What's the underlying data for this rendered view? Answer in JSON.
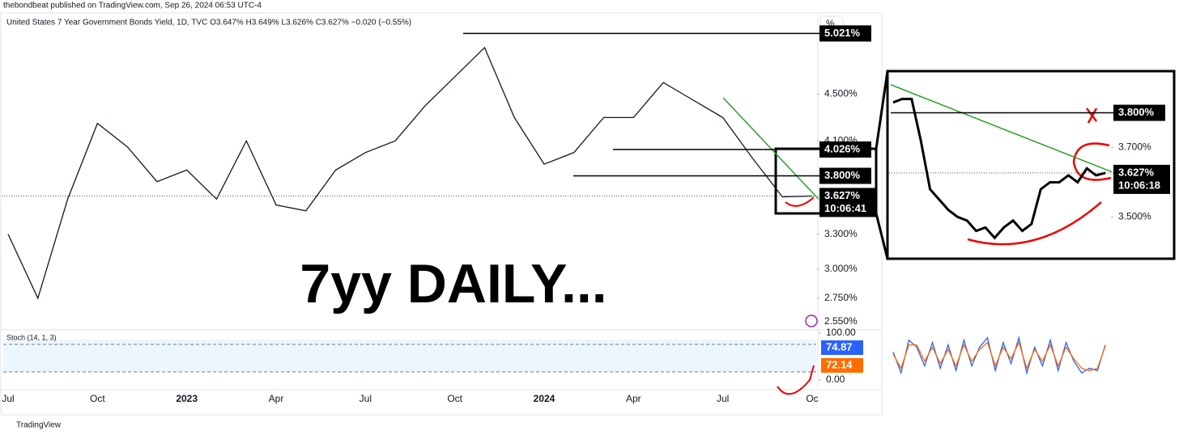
{
  "header": {
    "publisher": "thebondbeat published on TradingView.com, Sep 26, 2024 06:53 UTC-4",
    "footer": "TradingView",
    "unit": "%"
  },
  "chart_data": [
    {
      "type": "line",
      "title": "United States 7 Year Government Bonds Yield, 1D, TVC O3.647% H3.649% L3.626% C3.627% −0.020 (−0.55%)",
      "annotation": "7yy DAILY...",
      "categories": [
        "Jul",
        null,
        null,
        "Oct",
        null,
        null,
        "2023",
        null,
        null,
        "Apr",
        null,
        null,
        "Jul",
        null,
        null,
        "Oct",
        null,
        null,
        "2024",
        null,
        null,
        "Apr",
        null,
        null,
        "Jul",
        null,
        null,
        "Oc"
      ],
      "values": [
        3.3,
        2.75,
        3.6,
        4.25,
        4.05,
        3.75,
        3.85,
        3.6,
        4.1,
        3.55,
        3.5,
        3.85,
        4.0,
        4.1,
        4.4,
        4.65,
        4.9,
        4.3,
        3.9,
        4.0,
        4.3,
        4.3,
        4.6,
        4.45,
        4.3,
        3.95,
        3.62,
        3.627
      ],
      "color": "#131722",
      "ylim": [
        2.5,
        5.1
      ],
      "yticks": [
        {
          "value": 2.55,
          "label": "2.550%"
        },
        {
          "value": 2.75,
          "label": "2.750%"
        },
        {
          "value": 3.0,
          "label": "3.000%"
        },
        {
          "value": 3.3,
          "label": "3.300%"
        },
        {
          "value": 4.1,
          "label": "4.100%"
        },
        {
          "value": 4.5,
          "label": "4.500%"
        }
      ],
      "levels": [
        {
          "value": 5.021,
          "label": "5.021%"
        },
        {
          "value": 4.026,
          "label": "4.026%"
        },
        {
          "value": 3.8,
          "label": "3.800%"
        }
      ],
      "last": {
        "value": 3.627,
        "label": "3.627%",
        "countdown": "10:06:41"
      },
      "trendline": {
        "color": "#2e9e2e",
        "values": [
          4.47,
          3.6
        ]
      }
    },
    {
      "type": "line",
      "title": "Stoch (14, 1, 3)",
      "ylim": [
        0,
        100
      ],
      "yticks": [
        {
          "value": 0,
          "label": "0.00"
        },
        {
          "value": 100,
          "label": "100.00"
        }
      ],
      "series": [
        {
          "color": "#2962ff",
          "values": [
            60,
            15,
            85,
            70,
            30,
            80,
            25,
            75,
            20,
            85,
            30,
            70,
            90,
            20,
            80,
            35,
            90,
            15,
            70,
            30,
            85,
            20,
            80,
            40,
            15,
            25,
            20,
            74.87
          ]
        },
        {
          "color": "#ff6d00",
          "values": [
            55,
            25,
            75,
            75,
            40,
            70,
            35,
            65,
            30,
            75,
            40,
            65,
            80,
            30,
            70,
            45,
            80,
            25,
            65,
            40,
            75,
            30,
            70,
            45,
            25,
            20,
            25,
            72.14
          ]
        }
      ]
    },
    {
      "type": "line",
      "values": [
        3.83,
        3.84,
        3.84,
        3.72,
        3.58,
        3.55,
        3.52,
        3.5,
        3.49,
        3.46,
        3.47,
        3.44,
        3.47,
        3.49,
        3.46,
        3.48,
        3.58,
        3.6,
        3.6,
        3.62,
        3.6,
        3.64,
        3.62,
        3.627
      ],
      "color": "#000000",
      "ylim": [
        3.38,
        3.92
      ],
      "yticks": [
        {
          "value": 3.5,
          "label": "3.500%"
        },
        {
          "value": 3.7,
          "label": "3.700%"
        }
      ],
      "levels": [
        {
          "value": 3.8,
          "label": "3.800%"
        }
      ],
      "last": {
        "value": 3.627,
        "label": "3.627%",
        "countdown": "10:06:18"
      },
      "trendline": {
        "color": "#2e9e2e",
        "values": [
          3.881,
          3.63
        ]
      }
    }
  ]
}
